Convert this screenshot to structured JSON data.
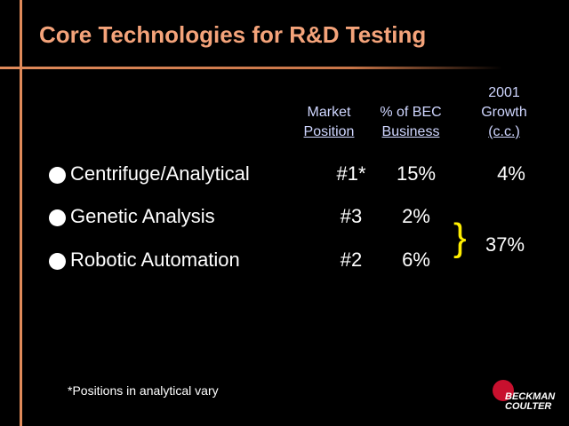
{
  "slide": {
    "title": "Core Technologies for R&D Testing",
    "footnote": "*Positions in analytical vary"
  },
  "table": {
    "headers": {
      "market_position": [
        "Market",
        "Position"
      ],
      "bec_business": [
        "% of BEC",
        "Business"
      ],
      "growth": [
        "2001",
        "Growth",
        "(c.c.)"
      ]
    },
    "rows": [
      {
        "label": "Centrifuge/Analytical",
        "position": "#1*",
        "percent": "15%",
        "growth": "4%"
      },
      {
        "label": "Genetic Analysis",
        "position": "#3",
        "percent": "2%"
      },
      {
        "label": "Robotic Automation",
        "position": "#2",
        "percent": "6%"
      }
    ],
    "shared_growth": "37%",
    "brace_color": "#ffee00"
  },
  "logo": {
    "line1": "BECKMAN",
    "line2": "COULTER",
    "color": "#c8102e"
  },
  "colors": {
    "title": "#f4a37a",
    "accent_line": "#e08a5a",
    "header_text": "#cfd6ff",
    "background": "#000000"
  }
}
